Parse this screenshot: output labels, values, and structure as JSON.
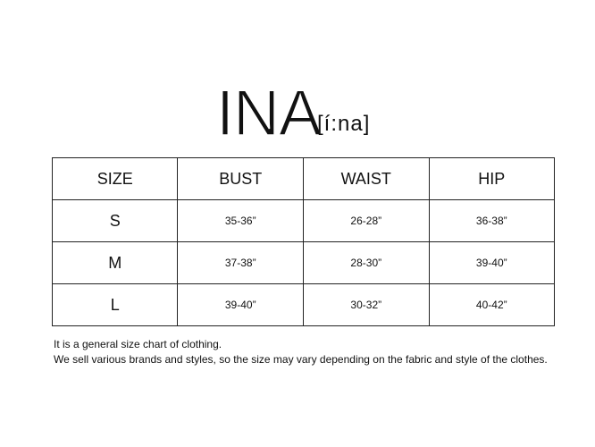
{
  "brand": {
    "name": "INA",
    "pronunciation": "[í:na]"
  },
  "size_chart": {
    "headers": [
      "SIZE",
      "BUST",
      "WAIST",
      "HIP"
    ],
    "rows": [
      [
        "S",
        "35-36”",
        "26-28”",
        "36-38”"
      ],
      [
        "M",
        "37-38”",
        "28-30”",
        "39-40”"
      ],
      [
        "L",
        "39-40”",
        "30-32”",
        "40-42”"
      ]
    ]
  },
  "notes": [
    "It is a general size chart of clothing.",
    "We sell various brands and styles, so the size may vary depending on the fabric and style of the clothes."
  ]
}
